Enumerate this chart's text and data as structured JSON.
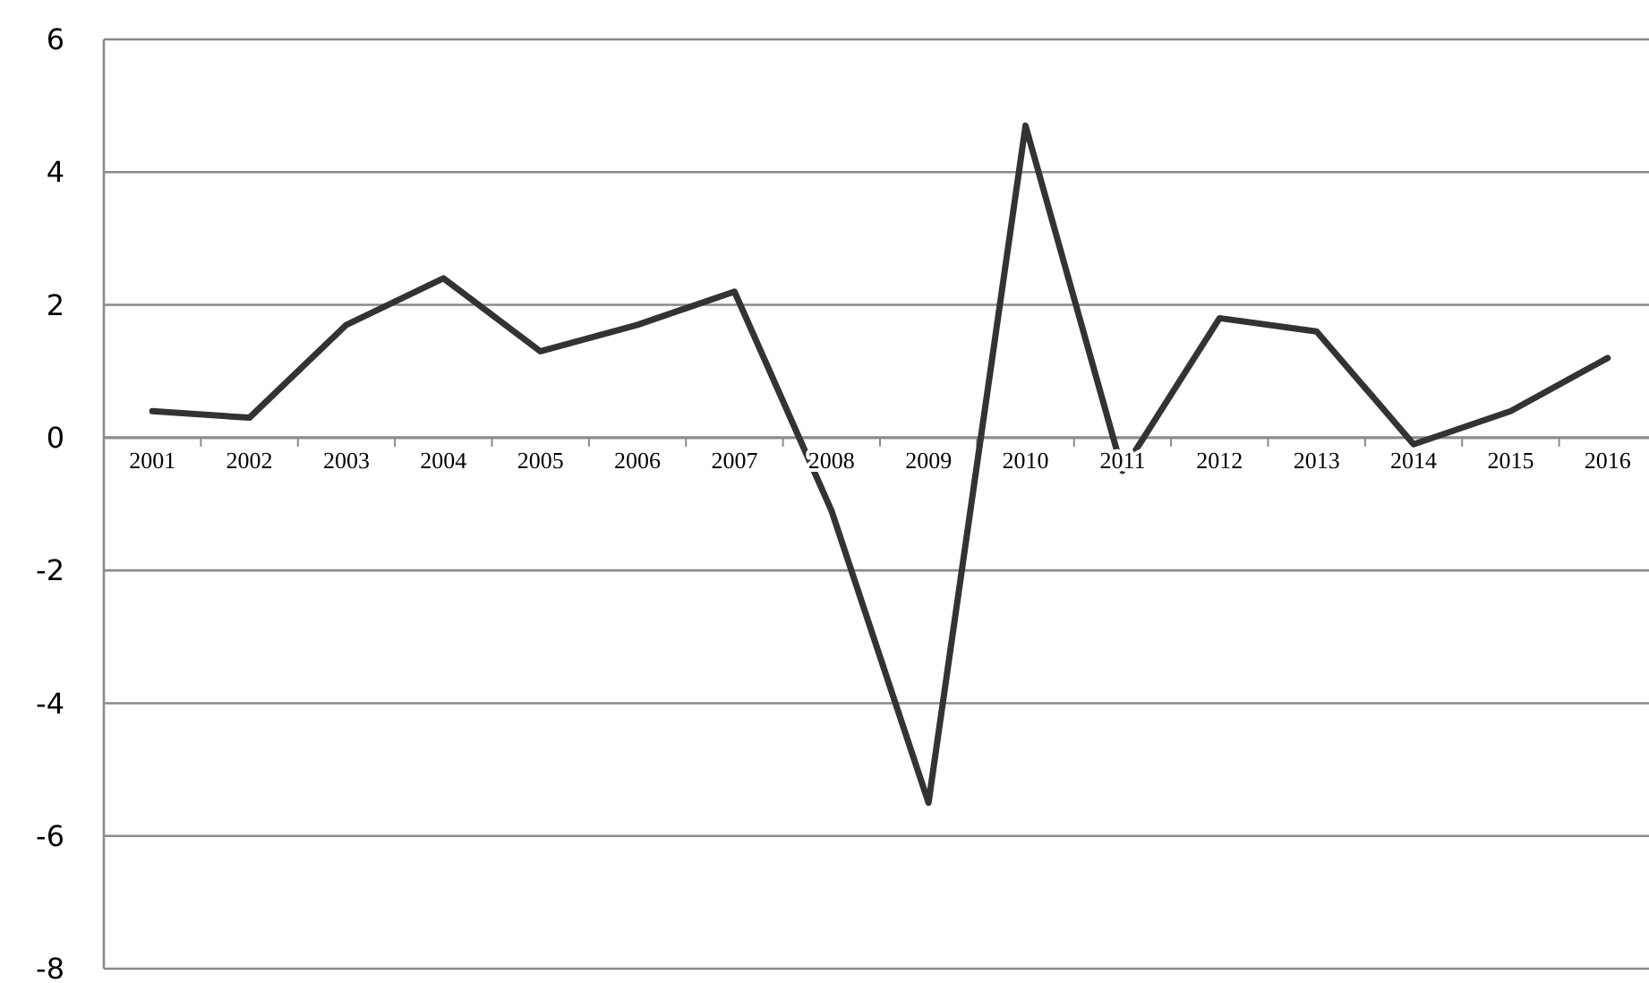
{
  "chart_data": {
    "type": "line",
    "categories": [
      "2001",
      "2002",
      "2003",
      "2004",
      "2005",
      "2006",
      "2007",
      "2008",
      "2009",
      "2010",
      "2011",
      "2012",
      "2013",
      "2014",
      "2015",
      "2016"
    ],
    "series": [
      {
        "color": "#333333",
        "values": [
          0.4,
          0.3,
          1.7,
          2.4,
          1.3,
          1.7,
          2.2,
          -1.1,
          -5.5,
          4.7,
          -0.5,
          1.8,
          1.6,
          -0.1,
          0.4,
          1.2
        ]
      }
    ],
    "ylim": [
      -8,
      6
    ],
    "yticks": [
      -8,
      -6,
      -4,
      -2,
      0,
      2,
      4,
      6
    ],
    "grid": "y",
    "marker": "none",
    "line_style": "solid"
  }
}
